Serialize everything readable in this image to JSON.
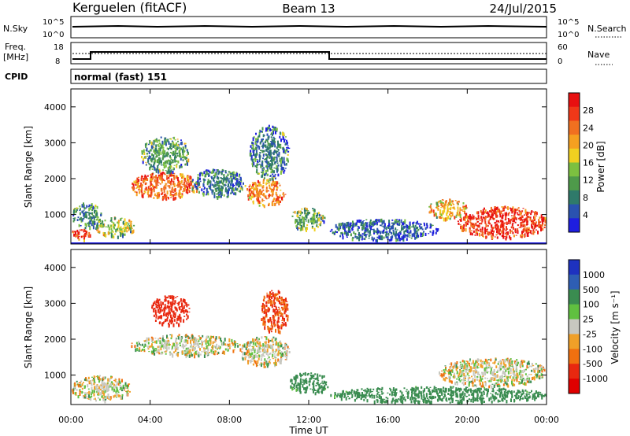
{
  "header": {
    "station": "Kerguelen (fitACF)",
    "beam": "Beam 13",
    "date": "24/Jul/2015"
  },
  "status_panel": {
    "nsky_label": "N.Sky",
    "nsky_ticks": [
      "10^5",
      "10^0"
    ],
    "nsearch_label": "N.Search",
    "nsearch_ticks": [
      "10^5",
      "10^0"
    ],
    "freq_label_1": "Freq.",
    "freq_label_2": "[MHz]",
    "freq_ticks": [
      "18",
      "8"
    ],
    "nave_label": "Nave",
    "nave_ticks": [
      "60",
      "0"
    ],
    "cpid_label": "CPID",
    "cpid_value": "normal (fast) 151"
  },
  "axes": {
    "ylabel": "Slant Range [km]",
    "yticks": [
      "4000",
      "3000",
      "2000",
      "1000"
    ],
    "xlabel": "Time UT",
    "xticks": [
      "00:00",
      "04:00",
      "08:00",
      "12:00",
      "16:00",
      "20:00",
      "00:00"
    ]
  },
  "power_colorbar": {
    "label": "Power [dB]",
    "ticks": [
      "28",
      "24",
      "20",
      "16",
      "12",
      "8",
      "4"
    ]
  },
  "velocity_colorbar": {
    "label": "Velocity [m s⁻¹]",
    "ticks": [
      "1000",
      "500",
      "100",
      "25",
      "-25",
      "-100",
      "-500",
      "-1000"
    ]
  },
  "colors": {
    "power": [
      "#1e1ee0",
      "#2a52b0",
      "#2f7a6a",
      "#4e9a4a",
      "#7cc040",
      "#f0d020",
      "#f5a020",
      "#f07020",
      "#f03818",
      "#e81010"
    ],
    "velocity": [
      "#1e32c0",
      "#2e5eb4",
      "#3a8c50",
      "#60c040",
      "#c8c8c0",
      "#f0a028",
      "#f07010",
      "#e82810",
      "#e00000"
    ]
  },
  "chart_data": [
    {
      "type": "heatmap",
      "title": "Power",
      "xlabel": "Time UT",
      "ylabel": "Slant Range [km]",
      "xlim": [
        0,
        24
      ],
      "ylim": [
        180,
        4500
      ],
      "value_label": "Power [dB]",
      "blobs": [
        {
          "t": [
            0.0,
            1.0
          ],
          "r": [
            300,
            650
          ],
          "v": 27
        },
        {
          "t": [
            0.0,
            1.5
          ],
          "r": [
            650,
            1350
          ],
          "v": 9
        },
        {
          "t": [
            1.2,
            3.2
          ],
          "r": [
            400,
            950
          ],
          "v": 15
        },
        {
          "t": [
            3.0,
            6.5
          ],
          "r": [
            1450,
            2200
          ],
          "v": 24
        },
        {
          "t": [
            3.5,
            6.0
          ],
          "r": [
            2200,
            3200
          ],
          "v": 11
        },
        {
          "t": [
            6.0,
            8.8
          ],
          "r": [
            1500,
            2300
          ],
          "v": 8
        },
        {
          "t": [
            8.8,
            10.8
          ],
          "r": [
            1250,
            2000
          ],
          "v": 23
        },
        {
          "t": [
            9.0,
            11.0
          ],
          "r": [
            2000,
            3500
          ],
          "v": 8
        },
        {
          "t": [
            11.0,
            12.8
          ],
          "r": [
            600,
            1200
          ],
          "v": 12
        },
        {
          "t": [
            13.0,
            18.5
          ],
          "r": [
            300,
            900
          ],
          "v": 6
        },
        {
          "t": [
            18.0,
            20.0
          ],
          "r": [
            900,
            1450
          ],
          "v": 19
        },
        {
          "t": [
            19.5,
            24.0
          ],
          "r": [
            350,
            1250
          ],
          "v": 28
        }
      ]
    },
    {
      "type": "heatmap",
      "title": "Velocity",
      "xlabel": "Time UT",
      "ylabel": "Slant Range [km]",
      "xlim": [
        0,
        24
      ],
      "ylim": [
        180,
        4500
      ],
      "value_label": "Velocity [m s⁻¹]",
      "blobs": [
        {
          "t": [
            0.0,
            3.0
          ],
          "r": [
            300,
            1000
          ],
          "v": 0
        },
        {
          "t": [
            3.0,
            8.5
          ],
          "r": [
            1550,
            2150
          ],
          "v": 0
        },
        {
          "t": [
            4.0,
            6.0
          ],
          "r": [
            2400,
            3250
          ],
          "v": -400
        },
        {
          "t": [
            8.5,
            11.0
          ],
          "r": [
            1250,
            2100
          ],
          "v": 0
        },
        {
          "t": [
            9.5,
            11.0
          ],
          "r": [
            2200,
            3400
          ],
          "v": -300
        },
        {
          "t": [
            11.0,
            13.0
          ],
          "r": [
            500,
            1100
          ],
          "v": 150
        },
        {
          "t": [
            13.0,
            24.0
          ],
          "r": [
            250,
            700
          ],
          "v": 150
        },
        {
          "t": [
            18.5,
            24.0
          ],
          "r": [
            700,
            1500
          ],
          "v": 0
        }
      ]
    }
  ]
}
